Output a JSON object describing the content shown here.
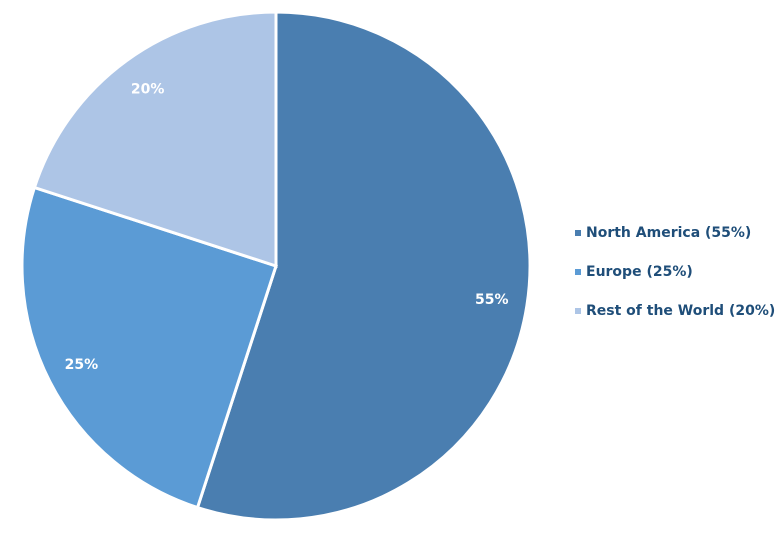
{
  "chart_data": {
    "type": "pie",
    "categories": [
      "North America (55%)",
      "Europe (25%)",
      "Rest of the World (20%)"
    ],
    "values": [
      55,
      25,
      20
    ],
    "value_labels": [
      "55%",
      "25%",
      "20%"
    ],
    "colors": [
      "#4a7eb0",
      "#5b9bd5",
      "#adc5e6"
    ],
    "legend": "right"
  }
}
